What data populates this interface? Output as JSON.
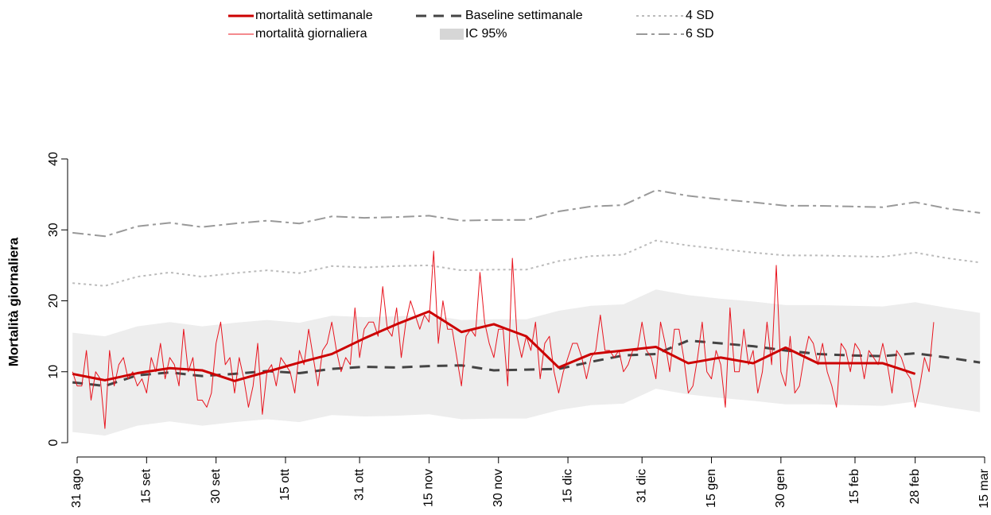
{
  "chart_data": {
    "type": "line",
    "ylabel": "Mortalità giornaliera",
    "xlim": [
      0,
      196
    ],
    "ylim": [
      0,
      40
    ],
    "yticks": [
      0,
      10,
      20,
      30,
      40
    ],
    "xticks": [
      {
        "value": 0,
        "label": "31 ago"
      },
      {
        "value": 15,
        "label": "15 set"
      },
      {
        "value": 30,
        "label": "30 set"
      },
      {
        "value": 45,
        "label": "15 ott"
      },
      {
        "value": 61,
        "label": "31 ott"
      },
      {
        "value": 76,
        "label": "15 nov"
      },
      {
        "value": 91,
        "label": "30 nov"
      },
      {
        "value": 106,
        "label": "15 dic"
      },
      {
        "value": 122,
        "label": "31 dic"
      },
      {
        "value": 137,
        "label": "15 gen"
      },
      {
        "value": 152,
        "label": "30 gen"
      },
      {
        "value": 168,
        "label": "15 feb"
      },
      {
        "value": 181,
        "label": "28 feb"
      },
      {
        "value": 196,
        "label": "15 mar"
      }
    ],
    "x": [
      -1,
      6,
      13,
      20,
      27,
      34,
      41,
      48,
      55,
      62,
      69,
      76,
      83,
      90,
      97,
      104,
      111,
      118,
      125,
      132,
      139,
      146,
      153,
      160,
      167,
      174,
      181,
      188,
      195
    ],
    "series": [
      {
        "name": "mortalità settimanale",
        "color": "#cc0000",
        "width": 3,
        "values": [
          9.7,
          8.8,
          9.8,
          10.5,
          10.2,
          8.7,
          10.0,
          11.3,
          12.5,
          14.7,
          16.7,
          18.5,
          15.6,
          16.7,
          15.0,
          10.6,
          12.5,
          13.0,
          13.5,
          11.2,
          12.0,
          11.2,
          13.4,
          11.2,
          11.2,
          11.2,
          9.7,
          null,
          null
        ]
      },
      {
        "name": "mortalità giornaliera",
        "color": "#e8141e",
        "width": 1,
        "x": [
          -1,
          0,
          1,
          2,
          3,
          4,
          5,
          6,
          7,
          8,
          9,
          10,
          11,
          12,
          13,
          14,
          15,
          16,
          17,
          18,
          19,
          20,
          21,
          22,
          23,
          24,
          25,
          26,
          27,
          28,
          29,
          30,
          31,
          32,
          33,
          34,
          35,
          36,
          37,
          38,
          39,
          40,
          41,
          42,
          43,
          44,
          45,
          46,
          47,
          48,
          49,
          50,
          51,
          52,
          53,
          54,
          55,
          56,
          57,
          58,
          59,
          60,
          61,
          62,
          63,
          64,
          65,
          66,
          67,
          68,
          69,
          70,
          71,
          72,
          73,
          74,
          75,
          76,
          77,
          78,
          79,
          80,
          81,
          82,
          83,
          84,
          85,
          86,
          87,
          88,
          89,
          90,
          91,
          92,
          93,
          94,
          95,
          96,
          97,
          98,
          99,
          100,
          101,
          102,
          103,
          104,
          105,
          106,
          107,
          108,
          109,
          110,
          111,
          112,
          113,
          114,
          115,
          116,
          117,
          118,
          119,
          120,
          121,
          122,
          123,
          124,
          125,
          126,
          127,
          128,
          129,
          130,
          131,
          132,
          133,
          134,
          135,
          136,
          137,
          138,
          139,
          140,
          141,
          142,
          143,
          144,
          145,
          146,
          147,
          148,
          149,
          150,
          151,
          152,
          153,
          154,
          155,
          156,
          157,
          158,
          159,
          160,
          161,
          162,
          163,
          164,
          165,
          166,
          167,
          168,
          169,
          170,
          171,
          172,
          173,
          174,
          175,
          176,
          177,
          178,
          179,
          180,
          181,
          182,
          183,
          184,
          185
        ],
        "values": [
          10,
          8,
          8,
          13,
          6,
          10,
          9,
          2,
          13,
          8,
          11,
          12,
          9,
          10,
          8,
          9,
          7,
          12,
          10,
          14,
          9,
          12,
          11,
          8,
          16,
          10,
          12,
          6,
          6,
          5,
          7,
          14,
          17,
          11,
          12,
          7,
          12,
          9,
          5,
          8,
          14,
          4,
          10,
          11,
          8,
          12,
          11,
          10,
          7,
          13,
          11,
          16,
          12,
          8,
          13,
          14,
          17,
          13,
          10,
          12,
          11,
          19,
          12,
          16,
          17,
          17,
          15,
          22,
          16,
          15,
          19,
          12,
          17,
          20,
          18,
          16,
          18,
          17,
          27,
          14,
          20,
          16,
          16,
          12,
          8,
          15,
          16,
          15,
          24,
          17,
          14,
          12,
          16,
          16,
          8,
          26,
          15,
          12,
          15,
          13,
          17,
          9,
          14,
          15,
          10,
          7,
          10,
          12,
          14,
          14,
          12,
          9,
          12,
          13,
          18,
          13,
          13,
          12,
          13,
          10,
          11,
          13,
          13,
          17,
          13,
          12,
          9,
          17,
          14,
          10,
          16,
          16,
          12,
          7,
          8,
          12,
          17,
          10,
          9,
          13,
          11,
          5,
          19,
          10,
          10,
          16,
          11,
          13,
          7,
          10,
          17,
          11,
          25,
          10,
          8,
          15,
          7,
          8,
          12,
          15,
          14,
          11,
          14,
          10,
          8,
          5,
          14,
          13,
          10,
          14,
          13,
          9,
          13,
          12,
          11,
          14,
          11,
          7,
          13,
          12,
          10,
          9,
          5,
          8,
          12,
          10,
          17
        ]
      },
      {
        "name": "Baseline settimanale",
        "color": "#444444",
        "width": 3,
        "dash": "13,9",
        "values": [
          8.5,
          8.0,
          9.5,
          9.9,
          9.4,
          9.7,
          10.1,
          9.8,
          10.4,
          10.7,
          10.6,
          10.8,
          10.9,
          10.2,
          10.3,
          10.4,
          11.4,
          12.3,
          12.5,
          14.4,
          14.0,
          13.6,
          13.0,
          12.5,
          12.3,
          12.2,
          12.6,
          12.0,
          11.3
        ]
      },
      {
        "name": "IC 95%",
        "color": "#ededed",
        "legend_color": "#d6d6d6",
        "band": true,
        "lower": [
          1.5,
          1.0,
          2.4,
          3.0,
          2.4,
          2.9,
          3.3,
          2.9,
          3.9,
          3.7,
          3.8,
          4.0,
          3.3,
          3.4,
          3.4,
          4.6,
          5.3,
          5.5,
          7.6,
          6.8,
          6.3,
          5.9,
          5.4,
          5.4,
          5.3,
          5.2,
          5.8,
          5.0,
          4.3
        ],
        "upper": [
          15.5,
          15.0,
          16.4,
          17.0,
          16.4,
          16.9,
          17.3,
          16.9,
          17.9,
          17.7,
          17.8,
          18.0,
          17.3,
          17.4,
          17.4,
          18.6,
          19.3,
          19.5,
          21.6,
          20.8,
          20.3,
          19.9,
          19.4,
          19.4,
          19.3,
          19.2,
          19.8,
          19.0,
          18.3
        ]
      },
      {
        "name": "4 SD",
        "color": "#bbbbbb",
        "width": 2,
        "dash": "3,4",
        "values": [
          22.5,
          22.1,
          23.4,
          24.0,
          23.4,
          23.9,
          24.3,
          23.9,
          24.9,
          24.7,
          24.9,
          25.0,
          24.3,
          24.4,
          24.4,
          25.6,
          26.3,
          26.5,
          28.5,
          27.8,
          27.3,
          26.8,
          26.4,
          26.4,
          26.3,
          26.2,
          26.8,
          26.0,
          25.4
        ]
      },
      {
        "name": "6 SD",
        "color": "#999999",
        "width": 2,
        "dash": "14,5,4,5",
        "values": [
          29.6,
          29.1,
          30.5,
          31.0,
          30.4,
          30.9,
          31.3,
          30.9,
          31.9,
          31.7,
          31.8,
          32.0,
          31.3,
          31.4,
          31.4,
          32.6,
          33.3,
          33.5,
          35.6,
          34.8,
          34.3,
          33.9,
          33.4,
          33.4,
          33.3,
          33.2,
          33.9,
          33.0,
          32.4
        ]
      }
    ]
  }
}
